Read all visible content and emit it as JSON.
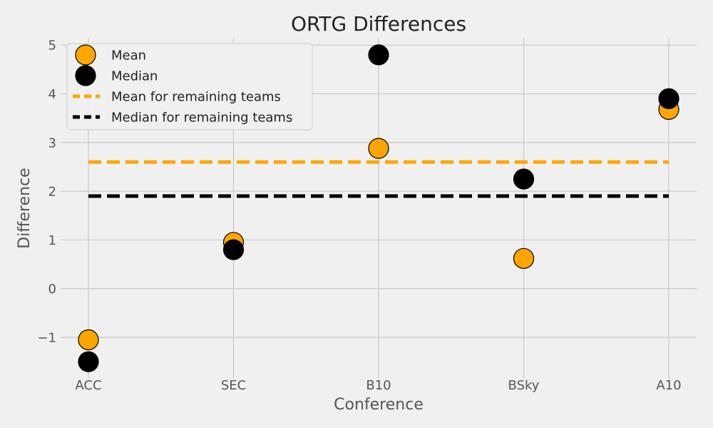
{
  "chart_data": {
    "type": "scatter",
    "title": "ORTG Differences",
    "xlabel": "Conference",
    "ylabel": "Difference",
    "categories": [
      "ACC",
      "SEC",
      "B10",
      "BSky",
      "A10"
    ],
    "ylim": [
      -1.85,
      5.15
    ],
    "yticks": [
      -1,
      0,
      1,
      2,
      3,
      4,
      5
    ],
    "ytick_labels": [
      "−1",
      "0",
      "1",
      "2",
      "3",
      "4",
      "5"
    ],
    "grid": true,
    "legend_position": "top-left",
    "series": [
      {
        "name": "Mean",
        "kind": "points",
        "color": "#ffa500",
        "values": [
          -1.05,
          0.95,
          2.88,
          0.62,
          3.68
        ]
      },
      {
        "name": "Median",
        "kind": "points",
        "color": "#000000",
        "values": [
          -1.5,
          0.8,
          4.8,
          2.25,
          3.9
        ]
      },
      {
        "name": "Mean for remaining teams",
        "kind": "hline",
        "color": "#ffa500",
        "value": 2.6
      },
      {
        "name": "Median for remaining teams",
        "kind": "hline",
        "color": "#000000",
        "value": 1.9
      }
    ]
  }
}
